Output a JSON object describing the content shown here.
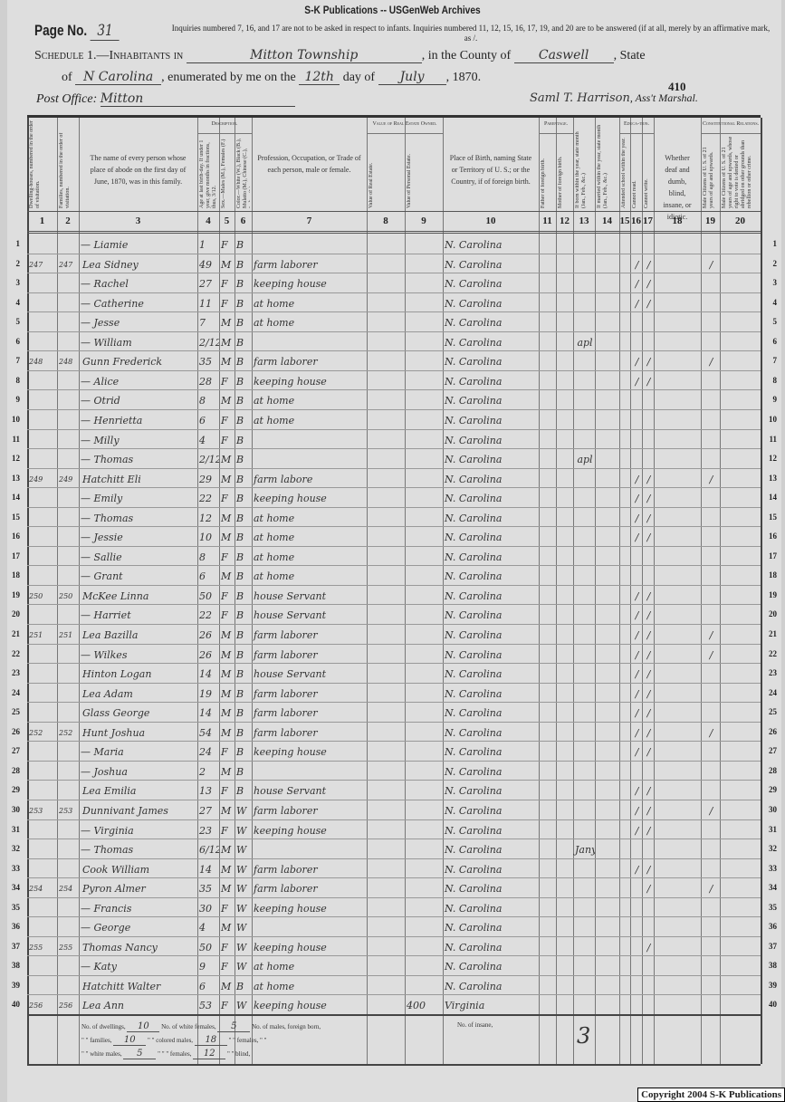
{
  "banner": "S-K Publications -- USGenWeb Archives",
  "header": {
    "page_label": "Page No.",
    "page_no": "31",
    "instructions": "Inquiries numbered 7, 16, and 17 are not to be asked in respect to infants. Inquiries numbered 11, 12, 15, 16, 17, 19, and 20 are to be answered (if at all, merely by an affirmative mark, as /.",
    "schedule_prefix": "Schedule 1.—Inhabitants in",
    "township": "Mitton Township",
    "county_label": ", in the County of",
    "county": "Caswell",
    "state_label": ", State",
    "of_label": "of",
    "state": "N Carolina",
    "enumerated_label": ", enumerated by me on the",
    "day": "12th",
    "day_of_label": "day of",
    "month": "July",
    "year": ", 1870.",
    "stamp_no": "410",
    "post_office_label": "Post Office:",
    "post_office": "Mitton",
    "marshal_signature": "Saml T. Harrison",
    "marshal_label": ", Ass't Marshal."
  },
  "columns": {
    "c1": "Dwelling-houses, numbered in the order of visitation.",
    "c2": "Families, numbered in the order of visitation.",
    "c3": "The name of every person whose place of abode on the first day of June, 1870, was in this family.",
    "description": "Description.",
    "c4": "Age at last birth-day. If under 1 year, give months in fractions, thus, 3/12.",
    "c5": "Sex.—Males (M.), Females (F.)",
    "c6": "Color.—White (W.), Black (B.), Mulatto (M.), Chinese (C.), Indian (I.)",
    "c7": "Profession, Occupation, or Trade of each person, male or female.",
    "real_estate": "Value of Real Estate Owned.",
    "c8": "Value of Real Estate.",
    "c9": "Value of Personal Estate.",
    "c10": "Place of Birth, naming State or Territory of U. S.; or the Country, if of foreign birth.",
    "parentage": "Parentage.",
    "c11": "Father of foreign birth.",
    "c12": "Mother of foreign birth.",
    "c13": "If born within the year, state month (Jan., Feb., &c.)",
    "c14": "If married within the year, state month (Jan., Feb., &c.)",
    "c15": "Attended school within the year.",
    "education": "Educa-tion.",
    "c16": "Cannot read.",
    "c17": "Cannot write.",
    "c18": "Whether deaf and dumb, blind, insane, or idiotic.",
    "constitutional": "Constitutional Relations.",
    "c19": "Male Citizens of U. S. of 21 years of age and upwards.",
    "c20": "Male Citizens of U. S. of 21 years of age and upwards, whose right to vote is denied or abridged on other grounds than rebellion or other crime.",
    "numbers": [
      "1",
      "2",
      "3",
      "4",
      "5",
      "6",
      "7",
      "8",
      "9",
      "10",
      "11",
      "12",
      "13",
      "14",
      "15",
      "16",
      "17",
      "18",
      "19",
      "20"
    ]
  },
  "rows": [
    {
      "line": "1",
      "dw": "",
      "fam": "",
      "name": "— Liamie",
      "age": "1",
      "sex": "F",
      "color": "B",
      "occ": "",
      "re": "",
      "pe": "",
      "birth": "N. Carolina",
      "m13": "",
      "c16": "",
      "c17": "",
      "c19": ""
    },
    {
      "line": "2",
      "dw": "247",
      "fam": "247",
      "name": "Lea Sidney",
      "age": "49",
      "sex": "M",
      "color": "B",
      "occ": "farm laborer",
      "re": "",
      "pe": "",
      "birth": "N. Carolina",
      "m13": "",
      "c16": "/",
      "c17": "/",
      "c19": "/"
    },
    {
      "line": "3",
      "dw": "",
      "fam": "",
      "name": "— Rachel",
      "age": "27",
      "sex": "F",
      "color": "B",
      "occ": "keeping house",
      "re": "",
      "pe": "",
      "birth": "N. Carolina",
      "m13": "",
      "c16": "/",
      "c17": "/",
      "c19": ""
    },
    {
      "line": "4",
      "dw": "",
      "fam": "",
      "name": "— Catherine",
      "age": "11",
      "sex": "F",
      "color": "B",
      "occ": "at home",
      "re": "",
      "pe": "",
      "birth": "N. Carolina",
      "m13": "",
      "c16": "/",
      "c17": "/",
      "c19": ""
    },
    {
      "line": "5",
      "dw": "",
      "fam": "",
      "name": "— Jesse",
      "age": "7",
      "sex": "M",
      "color": "B",
      "occ": "at home",
      "re": "",
      "pe": "",
      "birth": "N. Carolina",
      "m13": "",
      "c16": "",
      "c17": "",
      "c19": ""
    },
    {
      "line": "6",
      "dw": "",
      "fam": "",
      "name": "— William",
      "age": "2/12",
      "sex": "M",
      "color": "B",
      "occ": "",
      "re": "",
      "pe": "",
      "birth": "N. Carolina",
      "m13": "apl",
      "c16": "",
      "c17": "",
      "c19": ""
    },
    {
      "line": "7",
      "dw": "248",
      "fam": "248",
      "name": "Gunn Frederick",
      "age": "35",
      "sex": "M",
      "color": "B",
      "occ": "farm laborer",
      "re": "",
      "pe": "",
      "birth": "N. Carolina",
      "m13": "",
      "c16": "/",
      "c17": "/",
      "c19": "/"
    },
    {
      "line": "8",
      "dw": "",
      "fam": "",
      "name": "— Alice",
      "age": "28",
      "sex": "F",
      "color": "B",
      "occ": "keeping house",
      "re": "",
      "pe": "",
      "birth": "N. Carolina",
      "m13": "",
      "c16": "/",
      "c17": "/",
      "c19": ""
    },
    {
      "line": "9",
      "dw": "",
      "fam": "",
      "name": "— Otrid",
      "age": "8",
      "sex": "M",
      "color": "B",
      "occ": "at home",
      "re": "",
      "pe": "",
      "birth": "N. Carolina",
      "m13": "",
      "c16": "",
      "c17": "",
      "c19": ""
    },
    {
      "line": "10",
      "dw": "",
      "fam": "",
      "name": "— Henrietta",
      "age": "6",
      "sex": "F",
      "color": "B",
      "occ": "at home",
      "re": "",
      "pe": "",
      "birth": "N. Carolina",
      "m13": "",
      "c16": "",
      "c17": "",
      "c19": ""
    },
    {
      "line": "11",
      "dw": "",
      "fam": "",
      "name": "— Milly",
      "age": "4",
      "sex": "F",
      "color": "B",
      "occ": "",
      "re": "",
      "pe": "",
      "birth": "N. Carolina",
      "m13": "",
      "c16": "",
      "c17": "",
      "c19": ""
    },
    {
      "line": "12",
      "dw": "",
      "fam": "",
      "name": "— Thomas",
      "age": "2/12",
      "sex": "M",
      "color": "B",
      "occ": "",
      "re": "",
      "pe": "",
      "birth": "N. Carolina",
      "m13": "apl",
      "c16": "",
      "c17": "",
      "c19": ""
    },
    {
      "line": "13",
      "dw": "249",
      "fam": "249",
      "name": "Hatchitt Eli",
      "age": "29",
      "sex": "M",
      "color": "B",
      "occ": "farm labore",
      "re": "",
      "pe": "",
      "birth": "N. Carolina",
      "m13": "",
      "c16": "/",
      "c17": "/",
      "c19": "/"
    },
    {
      "line": "14",
      "dw": "",
      "fam": "",
      "name": "— Emily",
      "age": "22",
      "sex": "F",
      "color": "B",
      "occ": "keeping house",
      "re": "",
      "pe": "",
      "birth": "N. Carolina",
      "m13": "",
      "c16": "/",
      "c17": "/",
      "c19": ""
    },
    {
      "line": "15",
      "dw": "",
      "fam": "",
      "name": "— Thomas",
      "age": "12",
      "sex": "M",
      "color": "B",
      "occ": "at home",
      "re": "",
      "pe": "",
      "birth": "N. Carolina",
      "m13": "",
      "c16": "/",
      "c17": "/",
      "c19": ""
    },
    {
      "line": "16",
      "dw": "",
      "fam": "",
      "name": "— Jessie",
      "age": "10",
      "sex": "M",
      "color": "B",
      "occ": "at home",
      "re": "",
      "pe": "",
      "birth": "N. Carolina",
      "m13": "",
      "c16": "/",
      "c17": "/",
      "c19": ""
    },
    {
      "line": "17",
      "dw": "",
      "fam": "",
      "name": "— Sallie",
      "age": "8",
      "sex": "F",
      "color": "B",
      "occ": "at home",
      "re": "",
      "pe": "",
      "birth": "N. Carolina",
      "m13": "",
      "c16": "",
      "c17": "",
      "c19": ""
    },
    {
      "line": "18",
      "dw": "",
      "fam": "",
      "name": "— Grant",
      "age": "6",
      "sex": "M",
      "color": "B",
      "occ": "at home",
      "re": "",
      "pe": "",
      "birth": "N. Carolina",
      "m13": "",
      "c16": "",
      "c17": "",
      "c19": ""
    },
    {
      "line": "19",
      "dw": "250",
      "fam": "250",
      "name": "McKee Linna",
      "age": "50",
      "sex": "F",
      "color": "B",
      "occ": "house Servant",
      "re": "",
      "pe": "",
      "birth": "N. Carolina",
      "m13": "",
      "c16": "/",
      "c17": "/",
      "c19": ""
    },
    {
      "line": "20",
      "dw": "",
      "fam": "",
      "name": "— Harriet",
      "age": "22",
      "sex": "F",
      "color": "B",
      "occ": "house Servant",
      "re": "",
      "pe": "",
      "birth": "N. Carolina",
      "m13": "",
      "c16": "/",
      "c17": "/",
      "c19": ""
    },
    {
      "line": "21",
      "dw": "251",
      "fam": "251",
      "name": "Lea Bazilla",
      "age": "26",
      "sex": "M",
      "color": "B",
      "occ": "farm laborer",
      "re": "",
      "pe": "",
      "birth": "N. Carolina",
      "m13": "",
      "c16": "/",
      "c17": "/",
      "c19": "/"
    },
    {
      "line": "22",
      "dw": "",
      "fam": "",
      "name": "— Wilkes",
      "age": "26",
      "sex": "M",
      "color": "B",
      "occ": "farm laborer",
      "re": "",
      "pe": "",
      "birth": "N. Carolina",
      "m13": "",
      "c16": "/",
      "c17": "/",
      "c19": "/"
    },
    {
      "line": "23",
      "dw": "",
      "fam": "",
      "name": "Hinton Logan",
      "age": "14",
      "sex": "M",
      "color": "B",
      "occ": "house Servant",
      "re": "",
      "pe": "",
      "birth": "N. Carolina",
      "m13": "",
      "c16": "/",
      "c17": "/",
      "c19": ""
    },
    {
      "line": "24",
      "dw": "",
      "fam": "",
      "name": "Lea Adam",
      "age": "19",
      "sex": "M",
      "color": "B",
      "occ": "farm laborer",
      "re": "",
      "pe": "",
      "birth": "N. Carolina",
      "m13": "",
      "c16": "/",
      "c17": "/",
      "c19": ""
    },
    {
      "line": "25",
      "dw": "",
      "fam": "",
      "name": "Glass George",
      "age": "14",
      "sex": "M",
      "color": "B",
      "occ": "farm laborer",
      "re": "",
      "pe": "",
      "birth": "N. Carolina",
      "m13": "",
      "c16": "/",
      "c17": "/",
      "c19": ""
    },
    {
      "line": "26",
      "dw": "252",
      "fam": "252",
      "name": "Hunt Joshua",
      "age": "54",
      "sex": "M",
      "color": "B",
      "occ": "farm laborer",
      "re": "",
      "pe": "",
      "birth": "N. Carolina",
      "m13": "",
      "c16": "/",
      "c17": "/",
      "c19": "/"
    },
    {
      "line": "27",
      "dw": "",
      "fam": "",
      "name": "— Maria",
      "age": "24",
      "sex": "F",
      "color": "B",
      "occ": "keeping house",
      "re": "",
      "pe": "",
      "birth": "N. Carolina",
      "m13": "",
      "c16": "/",
      "c17": "/",
      "c19": ""
    },
    {
      "line": "28",
      "dw": "",
      "fam": "",
      "name": "— Joshua",
      "age": "2",
      "sex": "M",
      "color": "B",
      "occ": "",
      "re": "",
      "pe": "",
      "birth": "N. Carolina",
      "m13": "",
      "c16": "",
      "c17": "",
      "c19": ""
    },
    {
      "line": "29",
      "dw": "",
      "fam": "",
      "name": "Lea Emilia",
      "age": "13",
      "sex": "F",
      "color": "B",
      "occ": "house Servant",
      "re": "",
      "pe": "",
      "birth": "N. Carolina",
      "m13": "",
      "c16": "/",
      "c17": "/",
      "c19": ""
    },
    {
      "line": "30",
      "dw": "253",
      "fam": "253",
      "name": "Dunnivant James",
      "age": "27",
      "sex": "M",
      "color": "W",
      "occ": "farm laborer",
      "re": "",
      "pe": "",
      "birth": "N. Carolina",
      "m13": "",
      "c16": "/",
      "c17": "/",
      "c19": "/"
    },
    {
      "line": "31",
      "dw": "",
      "fam": "",
      "name": "— Virginia",
      "age": "23",
      "sex": "F",
      "color": "W",
      "occ": "keeping house",
      "re": "",
      "pe": "",
      "birth": "N. Carolina",
      "m13": "",
      "c16": "/",
      "c17": "/",
      "c19": ""
    },
    {
      "line": "32",
      "dw": "",
      "fam": "",
      "name": "— Thomas",
      "age": "6/12",
      "sex": "M",
      "color": "W",
      "occ": "",
      "re": "",
      "pe": "",
      "birth": "N. Carolina",
      "m13": "Jany",
      "c16": "",
      "c17": "",
      "c19": ""
    },
    {
      "line": "33",
      "dw": "",
      "fam": "",
      "name": "Cook William",
      "age": "14",
      "sex": "M",
      "color": "W",
      "occ": "farm laborer",
      "re": "",
      "pe": "",
      "birth": "N. Carolina",
      "m13": "",
      "c16": "/",
      "c17": "/",
      "c19": ""
    },
    {
      "line": "34",
      "dw": "254",
      "fam": "254",
      "name": "Pyron Almer",
      "age": "35",
      "sex": "M",
      "color": "W",
      "occ": "farm laborer",
      "re": "",
      "pe": "",
      "birth": "N. Carolina",
      "m13": "",
      "c16": "",
      "c17": "/",
      "c19": "/"
    },
    {
      "line": "35",
      "dw": "",
      "fam": "",
      "name": "— Francis",
      "age": "30",
      "sex": "F",
      "color": "W",
      "occ": "keeping house",
      "re": "",
      "pe": "",
      "birth": "N. Carolina",
      "m13": "",
      "c16": "",
      "c17": "",
      "c19": ""
    },
    {
      "line": "36",
      "dw": "",
      "fam": "",
      "name": "— George",
      "age": "4",
      "sex": "M",
      "color": "W",
      "occ": "",
      "re": "",
      "pe": "",
      "birth": "N. Carolina",
      "m13": "",
      "c16": "",
      "c17": "",
      "c19": ""
    },
    {
      "line": "37",
      "dw": "255",
      "fam": "255",
      "name": "Thomas Nancy",
      "age": "50",
      "sex": "F",
      "color": "W",
      "occ": "keeping house",
      "re": "",
      "pe": "",
      "birth": "N. Carolina",
      "m13": "",
      "c16": "",
      "c17": "/",
      "c19": ""
    },
    {
      "line": "38",
      "dw": "",
      "fam": "",
      "name": "— Katy",
      "age": "9",
      "sex": "F",
      "color": "W",
      "occ": "at home",
      "re": "",
      "pe": "",
      "birth": "N. Carolina",
      "m13": "",
      "c16": "",
      "c17": "",
      "c19": ""
    },
    {
      "line": "39",
      "dw": "",
      "fam": "",
      "name": "Hatchitt Walter",
      "age": "6",
      "sex": "M",
      "color": "B",
      "occ": "at home",
      "re": "",
      "pe": "",
      "birth": "N. Carolina",
      "m13": "",
      "c16": "",
      "c17": "",
      "c19": ""
    },
    {
      "line": "40",
      "dw": "256",
      "fam": "256",
      "name": "Lea Ann",
      "age": "53",
      "sex": "F",
      "color": "W",
      "occ": "keeping house",
      "re": "",
      "pe": "400",
      "birth": "Virginia",
      "m13": "",
      "c16": "",
      "c17": "",
      "c19": ""
    }
  ],
  "footer": {
    "dwellings_label": "No. of dwellings,",
    "dwellings": "10",
    "white_females_label": "No. of white females,",
    "white_females": "5",
    "males_foreign_label": "No. of males, foreign born,",
    "families_label": "\" \" families,",
    "families": "10",
    "colored_males_label": "\" \" colored males,",
    "colored_males": "18",
    "females_foreign_label": "\" \" females, \" \"",
    "white_males_label": "\" \" white males,",
    "white_males": "5",
    "colored_females_label": "\" \" \" females,",
    "colored_females": "12",
    "blind_label": "\" \" blind,",
    "insane_label": "No. of insane,",
    "tally_mark": "3"
  },
  "copyright": "Copyright 2004 S-K Publications"
}
